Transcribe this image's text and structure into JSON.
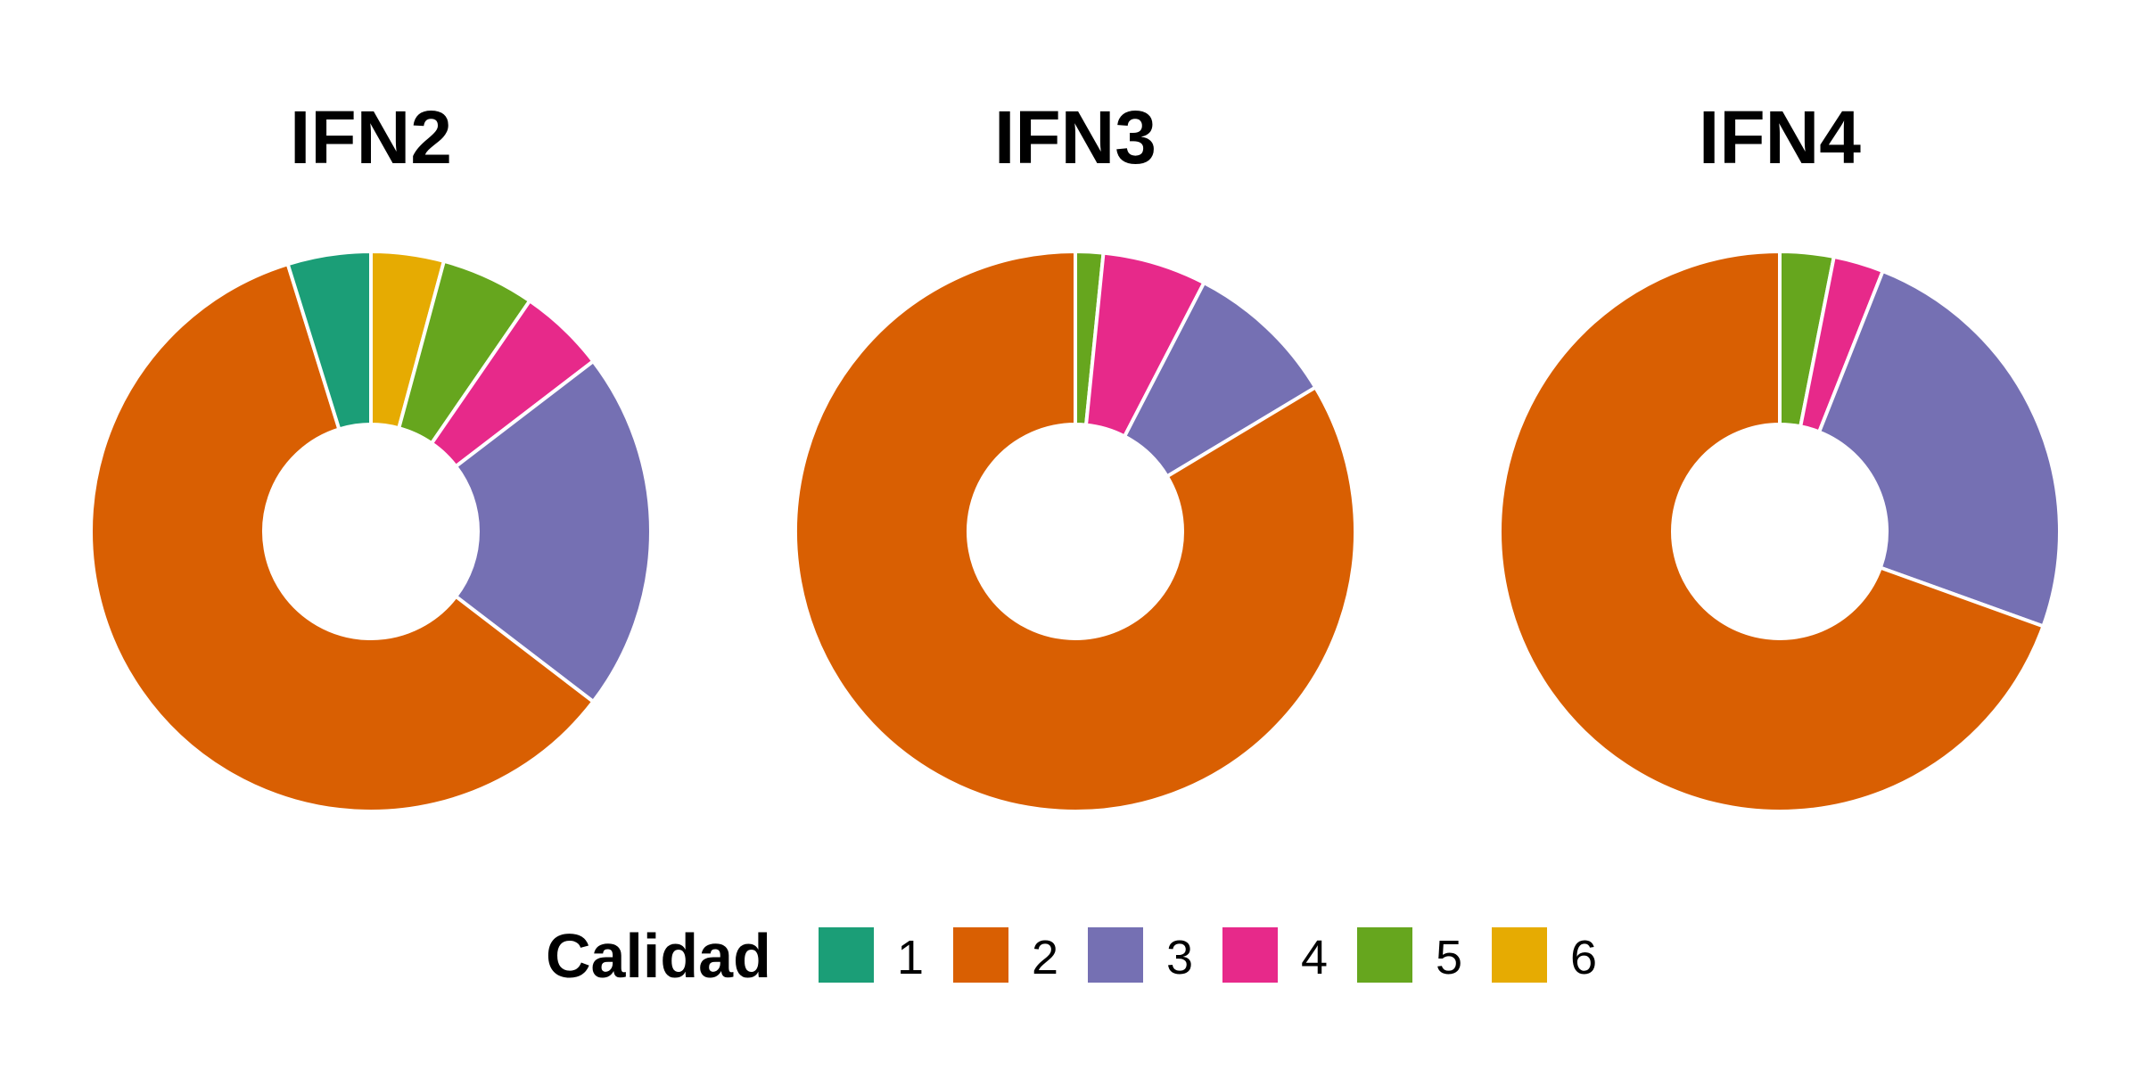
{
  "chart_data": {
    "type": "pie",
    "variant": "donut",
    "legend": {
      "title": "Calidad",
      "position": "bottom",
      "entries": [
        {
          "key": "1",
          "label": "1",
          "color": "#1B9E77"
        },
        {
          "key": "2",
          "label": "2",
          "color": "#D95F02"
        },
        {
          "key": "3",
          "label": "3",
          "color": "#7570B3"
        },
        {
          "key": "4",
          "label": "4",
          "color": "#E7298A"
        },
        {
          "key": "5",
          "label": "5",
          "color": "#66A61E"
        },
        {
          "key": "6",
          "label": "6",
          "color": "#E6AB02"
        }
      ]
    },
    "slice_border_color": "#FFFFFF",
    "panels": [
      {
        "title": "IFN2",
        "slices": [
          {
            "category": "6",
            "value": 4.2
          },
          {
            "category": "5",
            "value": 5.4
          },
          {
            "category": "4",
            "value": 5.0
          },
          {
            "category": "3",
            "value": 20.8
          },
          {
            "category": "2",
            "value": 59.8
          },
          {
            "category": "1",
            "value": 4.8
          }
        ]
      },
      {
        "title": "IFN3",
        "slices": [
          {
            "category": "5",
            "value": 1.6
          },
          {
            "category": "4",
            "value": 6.0
          },
          {
            "category": "3",
            "value": 8.8
          },
          {
            "category": "2",
            "value": 83.6
          }
        ]
      },
      {
        "title": "IFN4",
        "slices": [
          {
            "category": "5",
            "value": 3.1
          },
          {
            "category": "4",
            "value": 2.9
          },
          {
            "category": "3",
            "value": 24.5
          },
          {
            "category": "2",
            "value": 69.5
          }
        ]
      }
    ]
  }
}
